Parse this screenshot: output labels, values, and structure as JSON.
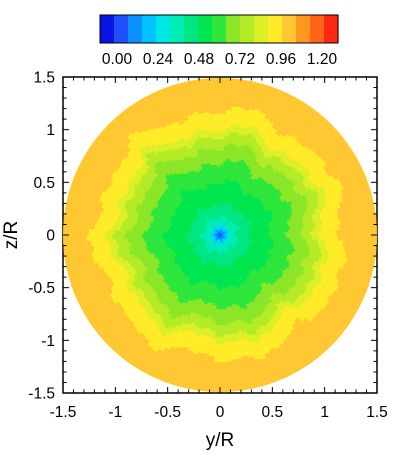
{
  "chart_data": {
    "type": "heatmap",
    "xlabel": "y/R",
    "ylabel": "z/R",
    "xlim": [
      -1.5,
      1.5
    ],
    "ylim": [
      -1.5,
      1.5
    ],
    "xticks": [
      -1.5,
      -1,
      -0.5,
      0,
      0.5,
      1,
      1.5
    ],
    "yticks": [
      -1.5,
      -1,
      -0.5,
      0,
      0.5,
      1,
      1.5
    ],
    "xtick_labels": [
      "-1.5",
      "-1",
      "-0.5",
      "0",
      "0.5",
      "1",
      "1.5"
    ],
    "ytick_labels": [
      "-1.5",
      "-1",
      "-0.5",
      "0",
      "0.5",
      "1",
      "1.5"
    ],
    "grid": false,
    "colorbar": {
      "placement": "top",
      "range": [
        0.0,
        1.2
      ],
      "tick_values": [
        0.0,
        0.24,
        0.48,
        0.72,
        0.96,
        1.2
      ],
      "tick_labels": [
        "0.00",
        "0.24",
        "0.48",
        "0.72",
        "0.96",
        "1.20"
      ],
      "colors": [
        "#0a14e6",
        "#1e50ff",
        "#0a90ff",
        "#00c2ff",
        "#00e6e6",
        "#00ecb4",
        "#00e682",
        "#00e650",
        "#2ee63c",
        "#8ce628",
        "#b4eb28",
        "#dcf028",
        "#ffeb28",
        "#ffc832",
        "#ff961e",
        "#ff6419",
        "#ff2814"
      ]
    },
    "field": {
      "domain_radius": 1.5,
      "value_description": "axisymmetric contour field on circular domain",
      "radial_profile": [
        {
          "r": 0.0,
          "value": 0.08
        },
        {
          "r": 0.05,
          "value": 0.22
        },
        {
          "r": 0.1,
          "value": 0.36
        },
        {
          "r": 0.2,
          "value": 0.45
        },
        {
          "r": 0.35,
          "value": 0.52
        },
        {
          "r": 0.55,
          "value": 0.58
        },
        {
          "r": 0.75,
          "value": 0.66
        },
        {
          "r": 0.9,
          "value": 0.74
        },
        {
          "r": 1.0,
          "value": 0.82
        },
        {
          "r": 1.06,
          "value": 0.9
        },
        {
          "r": 1.5,
          "value": 0.96
        }
      ]
    }
  }
}
